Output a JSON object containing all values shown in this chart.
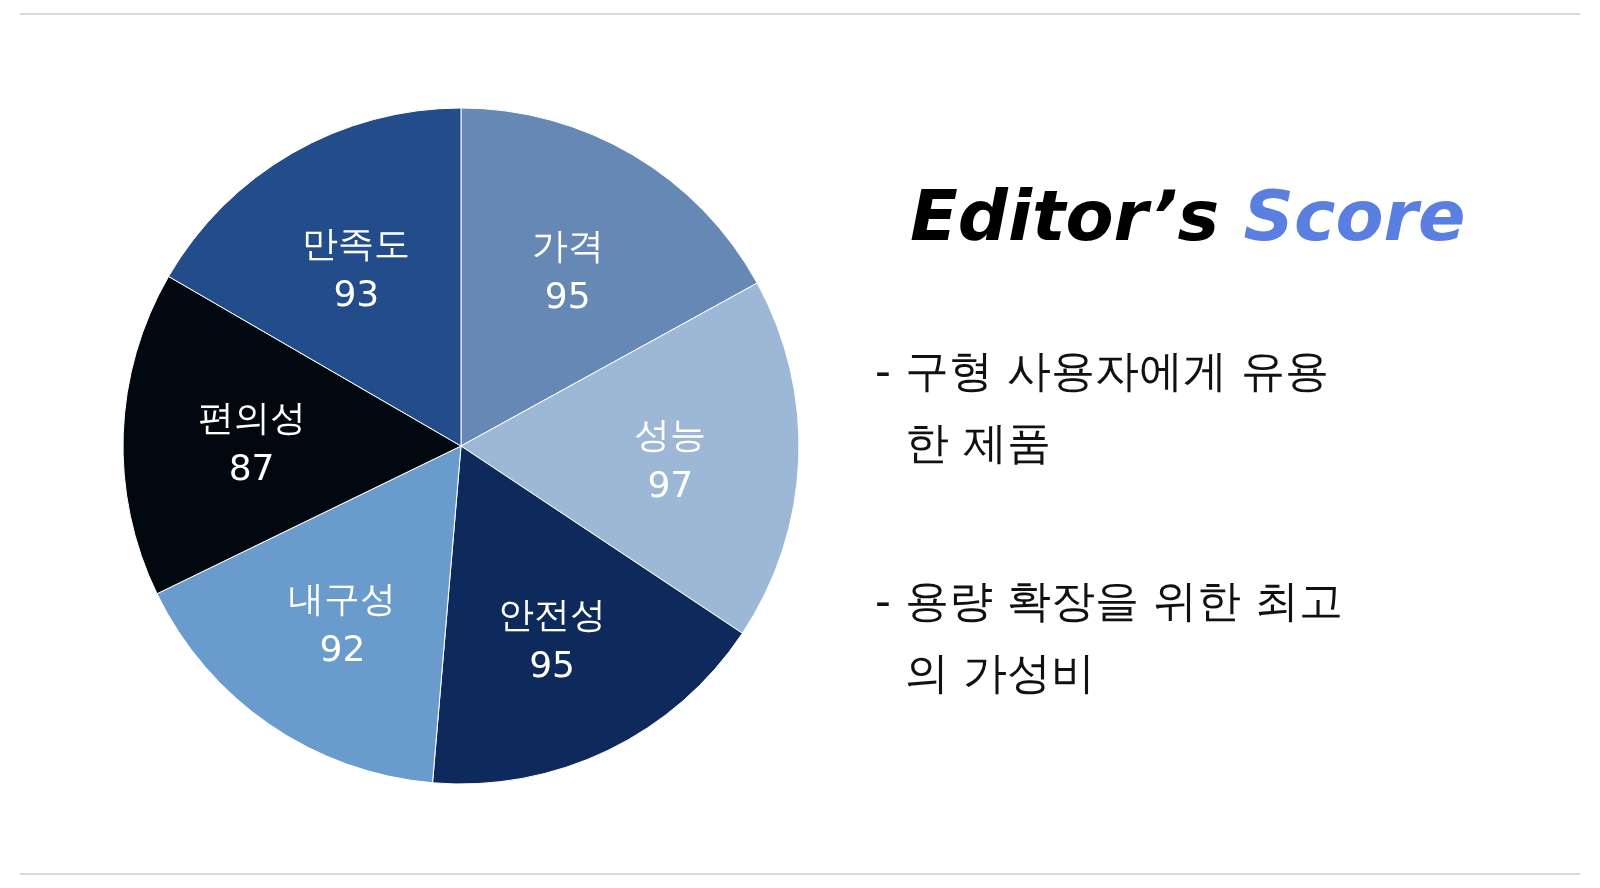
{
  "chart_data": {
    "type": "pie",
    "title": "Editor’s Score",
    "categories": [
      "가격",
      "성능",
      "안전성",
      "내구성",
      "편의성",
      "만족도"
    ],
    "values": [
      95,
      97,
      95,
      92,
      87,
      93
    ],
    "colors": [
      "#6688b4",
      "#9db8d6",
      "#0e2a5c",
      "#6a9bcd",
      "#020810",
      "#234d8a"
    ],
    "data_labels": true,
    "annotations": [
      "- 구형 사용자에게 유용한 제품",
      "- 용량 확장을 위한 최고의 가성비"
    ]
  }
}
